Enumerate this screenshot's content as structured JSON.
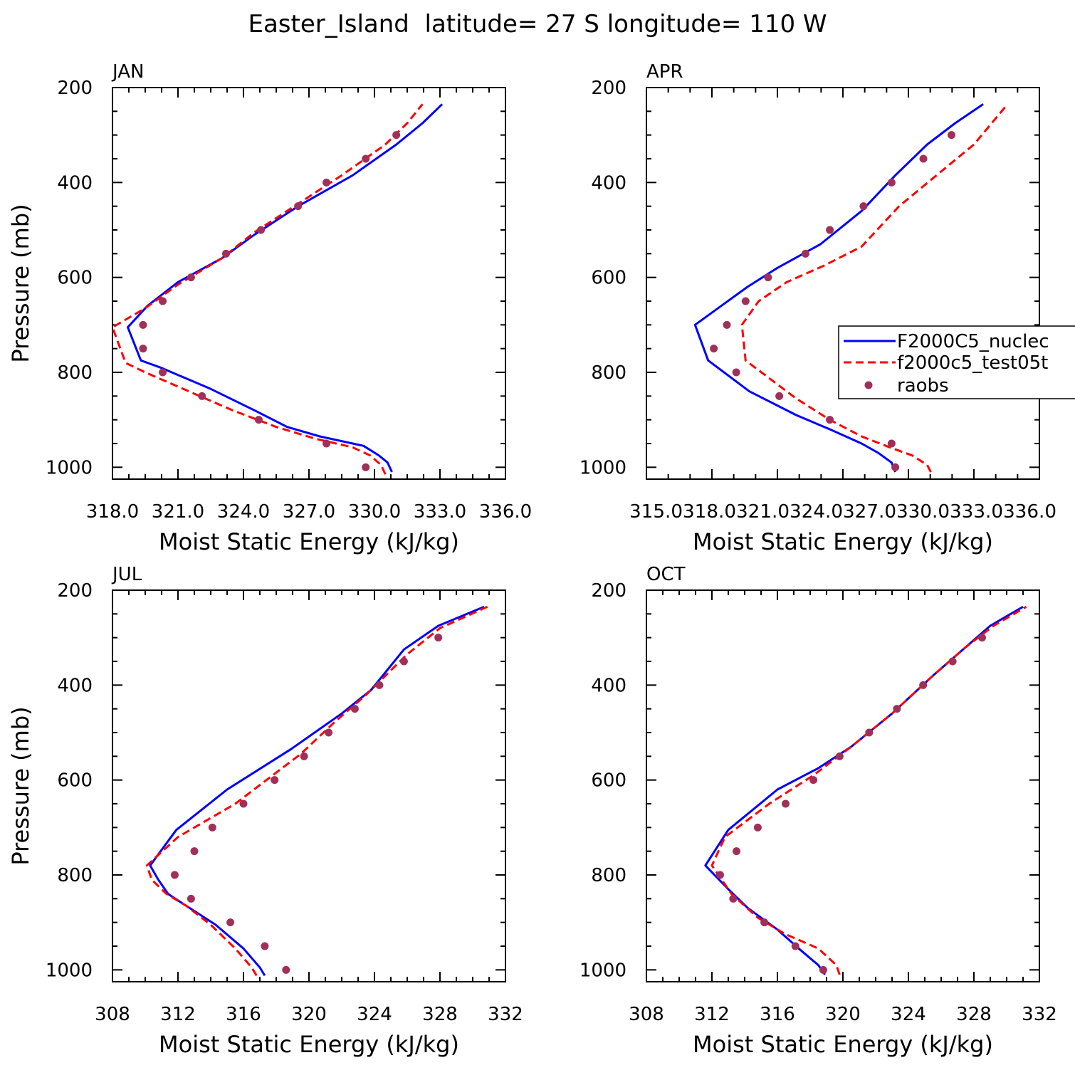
{
  "figure": {
    "title": "Easter_Island  latitude= 27 S longitude= 110 W"
  },
  "legend": {
    "entries": [
      "F2000C5_nuclec",
      "f2000c5_test05t",
      "raobs"
    ],
    "panel": "APR",
    "placement": "right-edge"
  },
  "colors": {
    "series1": "#0000ff",
    "series2": "#ff0000",
    "obs": "#a0305a",
    "axis": "#000000"
  },
  "chart_data": [
    {
      "type": "line",
      "panel_title": "JAN",
      "xlabel": "Moist Static Energy (kJ/kg)",
      "ylabel": "Pressure (mb)",
      "xlim": [
        318,
        336
      ],
      "ylim": [
        200,
        1025
      ],
      "y_inverted": true,
      "xtick_labels": [
        "318.0",
        "321.0",
        "324.0",
        "327.0",
        "330.0",
        "333.0",
        "336.0"
      ],
      "ytick_labels": [
        "200",
        "400",
        "600",
        "800",
        "1000"
      ],
      "series": [
        {
          "name": "F2000C5_nuclec",
          "style": "solid",
          "x": [
            330.8,
            330.6,
            330.2,
            329.5,
            327.5,
            326.0,
            324.5,
            322.5,
            320.2,
            319.3,
            318.7,
            319.6,
            321.0,
            323.0,
            324.5,
            326.5,
            329.0,
            331.0,
            332.2,
            333.1
          ],
          "y": [
            1010,
            990,
            975,
            955,
            935,
            915,
            880,
            835,
            790,
            775,
            705,
            660,
            610,
            560,
            510,
            450,
            385,
            320,
            275,
            235
          ]
        },
        {
          "name": "f2000c5_test05t",
          "style": "dashed",
          "x": [
            330.5,
            330.3,
            329.8,
            329.0,
            327.3,
            325.5,
            323.5,
            321.5,
            319.5,
            318.6,
            318.0,
            319.5,
            321.0,
            323.0,
            324.5,
            326.5,
            328.5,
            330.5,
            331.5,
            332.2
          ],
          "y": [
            1015,
            995,
            975,
            958,
            940,
            915,
            880,
            840,
            800,
            780,
            705,
            665,
            615,
            560,
            505,
            445,
            385,
            320,
            275,
            235
          ]
        },
        {
          "name": "raobs",
          "style": "markers",
          "x": [
            329.6,
            327.8,
            324.7,
            322.1,
            320.3,
            319.4,
            319.4,
            320.3,
            321.6,
            323.2,
            324.8,
            326.5,
            327.8,
            329.6,
            331.0
          ],
          "y": [
            1000,
            950,
            900,
            850,
            800,
            750,
            700,
            650,
            600,
            550,
            500,
            450,
            400,
            350,
            300
          ]
        }
      ]
    },
    {
      "type": "line",
      "panel_title": "APR",
      "xlabel": "Moist Static Energy (kJ/kg)",
      "ylabel": "",
      "xlim": [
        315,
        336
      ],
      "ylim": [
        200,
        1025
      ],
      "y_inverted": true,
      "xtick_labels": [
        "315.0318.0321.0324.0327.0330.0333.0336.0"
      ],
      "ytick_labels": [
        "200",
        "400",
        "600",
        "800",
        "1000"
      ],
      "series": [
        {
          "name": "F2000C5_nuclec",
          "style": "solid",
          "x": [
            328.3,
            328.1,
            327.4,
            326.5,
            324.8,
            323.0,
            320.5,
            318.3,
            317.6,
            320.4,
            322.0,
            324.3,
            326.5,
            328.3,
            330.0,
            331.5,
            333.0
          ],
          "y": [
            1010,
            990,
            970,
            950,
            920,
            890,
            840,
            775,
            700,
            620,
            580,
            530,
            460,
            385,
            320,
            275,
            235
          ]
        },
        {
          "name": "f2000c5_test05t",
          "style": "dashed",
          "x": [
            330.2,
            330.0,
            329.2,
            328.0,
            326.5,
            324.8,
            323.0,
            320.3,
            320.1,
            321.0,
            322.5,
            324.5,
            326.5,
            328.5,
            330.5,
            332.5,
            334.3
          ],
          "y": [
            1010,
            995,
            975,
            958,
            935,
            900,
            855,
            775,
            700,
            650,
            610,
            575,
            535,
            450,
            385,
            320,
            235
          ]
        },
        {
          "name": "raobs",
          "style": "markers",
          "x": [
            328.3,
            328.1,
            324.8,
            322.1,
            319.8,
            318.6,
            319.3,
            320.3,
            321.5,
            323.5,
            324.8,
            326.6,
            328.1,
            329.8,
            331.3
          ],
          "y": [
            1000,
            950,
            900,
            850,
            800,
            750,
            700,
            650,
            600,
            550,
            500,
            450,
            400,
            350,
            300
          ]
        }
      ]
    },
    {
      "type": "line",
      "panel_title": "JUL",
      "xlabel": "Moist Static Energy (kJ/kg)",
      "ylabel": "Pressure (mb)",
      "xlim": [
        308,
        332
      ],
      "ylim": [
        200,
        1025
      ],
      "y_inverted": true,
      "xtick_labels": [
        "308",
        "312",
        "316",
        "320",
        "324",
        "328",
        "332"
      ],
      "ytick_labels": [
        "200",
        "400",
        "600",
        "800",
        "1000"
      ],
      "series": [
        {
          "name": "F2000C5_nuclec",
          "style": "solid",
          "x": [
            317.3,
            317.0,
            316.0,
            314.3,
            312.5,
            311.4,
            310.8,
            310.3,
            311.9,
            315.0,
            318.9,
            322.0,
            323.8,
            325.8,
            327.9,
            330.7
          ],
          "y": [
            1012,
            995,
            955,
            905,
            865,
            840,
            810,
            780,
            705,
            620,
            535,
            460,
            410,
            325,
            275,
            235
          ]
        },
        {
          "name": "f2000c5_test05t",
          "style": "dashed",
          "x": [
            316.8,
            316.5,
            315.5,
            314.0,
            312.5,
            311.3,
            310.4,
            310.1,
            312.0,
            315.5,
            319.5,
            321.5,
            323.5,
            326.0,
            328.0,
            330.9
          ],
          "y": [
            1012,
            995,
            955,
            905,
            865,
            840,
            810,
            780,
            720,
            650,
            545,
            480,
            420,
            335,
            280,
            235
          ]
        },
        {
          "name": "raobs",
          "style": "markers",
          "x": [
            318.6,
            317.3,
            315.2,
            312.8,
            311.8,
            313.0,
            314.1,
            316.0,
            317.9,
            319.7,
            321.2,
            322.8,
            324.3,
            325.8,
            327.9
          ],
          "y": [
            1000,
            950,
            900,
            850,
            800,
            750,
            700,
            650,
            600,
            550,
            500,
            450,
            400,
            350,
            300
          ]
        }
      ]
    },
    {
      "type": "line",
      "panel_title": "OCT",
      "xlabel": "Moist Static Energy (kJ/kg)",
      "ylabel": "",
      "xlim": [
        308,
        332
      ],
      "ylim": [
        200,
        1025
      ],
      "y_inverted": true,
      "xtick_labels": [
        "308",
        "312",
        "316",
        "320",
        "324",
        "328",
        "332"
      ],
      "ytick_labels": [
        "200",
        "400",
        "600",
        "800",
        "1000"
      ],
      "series": [
        {
          "name": "F2000C5_nuclec",
          "style": "solid",
          "x": [
            318.9,
            318.5,
            317.3,
            316.0,
            314.2,
            313.0,
            311.6,
            313.0,
            316.0,
            318.5,
            320.5,
            323.0,
            325.5,
            327.5,
            329.0,
            331.0
          ],
          "y": [
            1010,
            990,
            955,
            915,
            870,
            830,
            780,
            705,
            620,
            575,
            530,
            460,
            380,
            320,
            275,
            235
          ]
        },
        {
          "name": "f2000c5_test05t",
          "style": "dashed",
          "x": [
            319.8,
            319.6,
            318.5,
            316.5,
            314.8,
            313.2,
            312.0,
            312.8,
            315.5,
            318.2,
            320.5,
            323.0,
            325.5,
            327.5,
            329.2,
            331.2
          ],
          "y": [
            1010,
            990,
            955,
            925,
            890,
            840,
            780,
            720,
            650,
            590,
            530,
            460,
            380,
            320,
            275,
            235
          ]
        },
        {
          "name": "raobs",
          "style": "markers",
          "x": [
            318.8,
            317.1,
            315.2,
            313.3,
            312.5,
            313.5,
            314.8,
            316.5,
            318.2,
            319.8,
            321.6,
            323.3,
            324.9,
            326.7,
            328.5
          ],
          "y": [
            1000,
            950,
            900,
            850,
            800,
            750,
            700,
            650,
            600,
            550,
            500,
            450,
            400,
            350,
            300
          ]
        }
      ]
    }
  ]
}
